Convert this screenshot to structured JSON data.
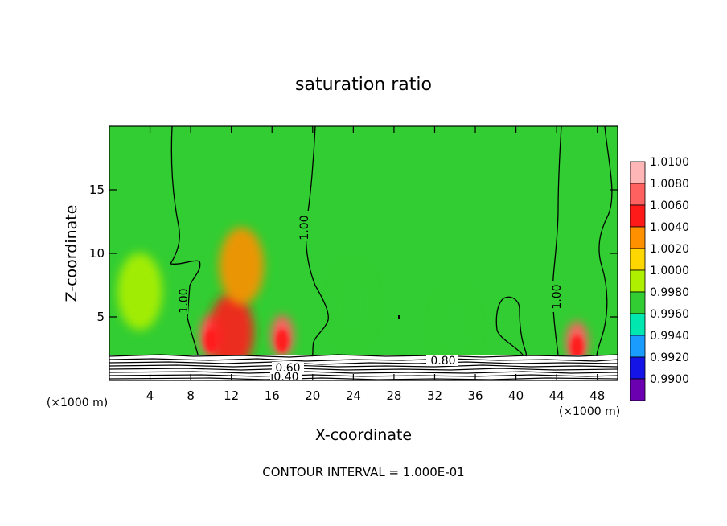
{
  "chart_data": {
    "type": "heatmap",
    "title": "saturation ratio",
    "xlabel": "X-coordinate",
    "ylabel": "Z-coordinate",
    "x_unit_left": "(×1000 m)",
    "x_unit_right": "(×1000 m)",
    "xlim": [
      0,
      50
    ],
    "ylim": [
      0,
      20
    ],
    "x_ticks": [
      "4",
      "8",
      "12",
      "16",
      "20",
      "24",
      "28",
      "32",
      "36",
      "40",
      "44",
      "48"
    ],
    "y_ticks": [
      "5",
      "10",
      "15"
    ],
    "footer": "CONTOUR INTERVAL = 1.000E-01",
    "colorbar": {
      "levels": [
        "1.0100",
        "1.0080",
        "1.0060",
        "1.0040",
        "1.0020",
        "1.0000",
        "0.9980",
        "0.9960",
        "0.9940",
        "0.9920",
        "0.9900"
      ],
      "colors": [
        "#ffb6b6",
        "#ff6060",
        "#ff1a1a",
        "#ff9000",
        "#ffd700",
        "#aef000",
        "#32cd32",
        "#00e8b0",
        "#1a9cff",
        "#1414e6",
        "#6a00b0"
      ]
    },
    "contour_labels": [
      "1.00",
      "1.00",
      "1.00",
      "0.80",
      "0.60",
      "0.40"
    ],
    "background_value": 1.0,
    "features": [
      {
        "x": 10,
        "z": 3.5,
        "value": 1.006
      },
      {
        "x": 12,
        "z": 3.8,
        "value": 1.005
      },
      {
        "x": 17,
        "z": 3.5,
        "value": 1.007
      },
      {
        "x": 13,
        "z": 9,
        "value": 1.002
      },
      {
        "x": 46,
        "z": 3,
        "value": 1.006
      },
      {
        "x": 24,
        "z": 6,
        "value": 0.9965
      },
      {
        "x": 34,
        "z": 4,
        "value": 0.9975
      },
      {
        "x": 3,
        "z": 7,
        "value": 0.9985
      }
    ]
  }
}
